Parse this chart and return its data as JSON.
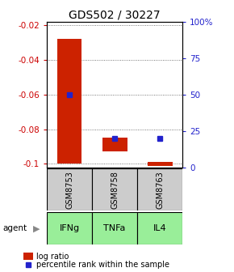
{
  "title": "GDS502 / 30227",
  "categories": [
    "GSM8753",
    "GSM8758",
    "GSM8763"
  ],
  "agents": [
    "IFNg",
    "TNFa",
    "IL4"
  ],
  "log_ratios": [
    -0.1,
    -0.093,
    -0.101
  ],
  "bar_tops": [
    -0.028,
    -0.085,
    -0.099
  ],
  "percentile_ranks": [
    50,
    20,
    20
  ],
  "bar_color": "#cc2200",
  "marker_color": "#2222cc",
  "ylim_left": [
    -0.102,
    -0.018
  ],
  "yticks_left": [
    -0.02,
    -0.04,
    -0.06,
    -0.08,
    -0.1
  ],
  "ylim_right": [
    0,
    100
  ],
  "yticks_right": [
    0,
    25,
    50,
    75,
    100
  ],
  "ytick_labels_right": [
    "0",
    "25",
    "50",
    "75",
    "100%"
  ],
  "grid_color": "#555555",
  "agent_color": "#99ee99",
  "sample_color": "#cccccc",
  "bar_width": 0.55
}
